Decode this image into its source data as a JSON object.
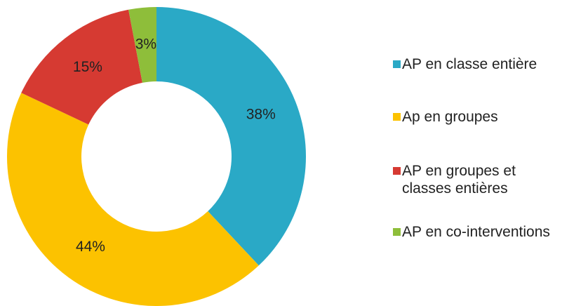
{
  "chart_data": {
    "type": "donut",
    "categories": [
      "AP en classe entière",
      "Ap en groupes",
      "AP en groupes et classes entières",
      "AP en co-interventions"
    ],
    "values": [
      38,
      44,
      15,
      3
    ],
    "value_labels": [
      "38%",
      "44%",
      "15%",
      "3%"
    ],
    "colors": [
      "#2aa9c6",
      "#fcc200",
      "#d63a32",
      "#8ebe3a"
    ],
    "legend": "right"
  }
}
